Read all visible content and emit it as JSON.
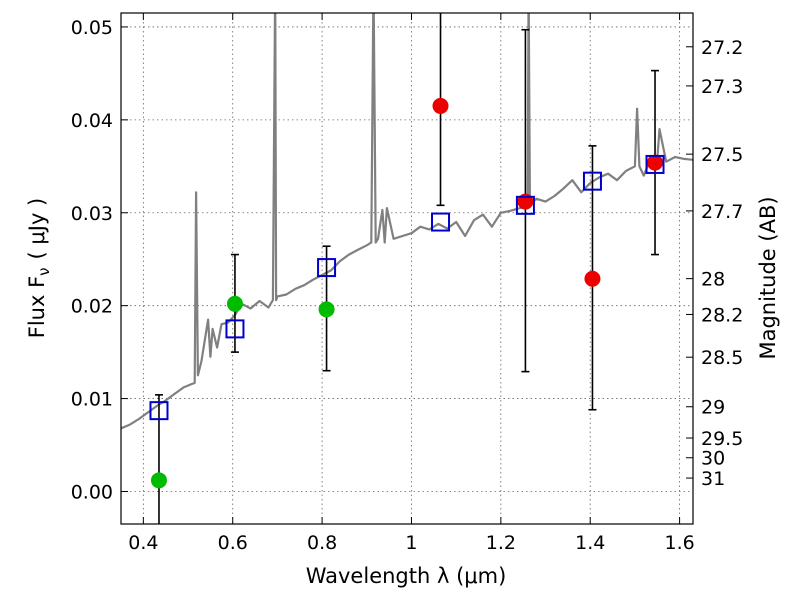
{
  "chart_data": {
    "type": "scatter",
    "xlabel": "Wavelength  λ (μm)",
    "ylabel_left": "Flux  F",
    "ylabel_left_sub": "ν",
    "ylabel_left_unit": "( μJy )",
    "ylabel_right": "Magnitude (AB)",
    "xlim": [
      0.35,
      1.63
    ],
    "ylim": [
      -0.0035,
      0.0515
    ],
    "x_ticks": [
      0.4,
      0.6,
      0.8,
      1.0,
      1.2,
      1.4,
      1.6
    ],
    "x_tick_labels": [
      "0.4",
      "0.6",
      "0.8",
      "1",
      "1.2",
      "1.4",
      "1.6"
    ],
    "y_ticks": [
      0.0,
      0.01,
      0.02,
      0.03,
      0.04,
      0.05
    ],
    "y_tick_labels": [
      "0.00",
      "0.01",
      "0.02",
      "0.03",
      "0.04",
      "0.05"
    ],
    "right_ticks": [
      {
        "mag": 27.2,
        "label": "27.2"
      },
      {
        "mag": 27.3,
        "label": "27.3"
      },
      {
        "mag": 27.5,
        "label": "27.5"
      },
      {
        "mag": 27.7,
        "label": "27.7"
      },
      {
        "mag": 28,
        "label": "28"
      },
      {
        "mag": 28.2,
        "label": "28.2"
      },
      {
        "mag": 28.5,
        "label": "28.5"
      },
      {
        "mag": 29,
        "label": "29"
      },
      {
        "mag": 29.5,
        "label": "29.5"
      },
      {
        "mag": 30,
        "label": "30"
      },
      {
        "mag": 31,
        "label": "31"
      }
    ],
    "grid": true,
    "colors": {
      "spectrum": "#808080",
      "green_points": "#00bb00",
      "red_points": "#ee0000",
      "model_boxes": "#0000cc",
      "errorbar": "#000000"
    },
    "series": [
      {
        "name": "spectrum",
        "kind": "line",
        "x": [
          0.35,
          0.37,
          0.39,
          0.41,
          0.43,
          0.45,
          0.47,
          0.49,
          0.505,
          0.515,
          0.518,
          0.522,
          0.53,
          0.545,
          0.55,
          0.555,
          0.565,
          0.575,
          0.59,
          0.605,
          0.62,
          0.64,
          0.66,
          0.68,
          0.69,
          0.695,
          0.697,
          0.7,
          0.72,
          0.74,
          0.76,
          0.78,
          0.8,
          0.82,
          0.84,
          0.86,
          0.88,
          0.9,
          0.91,
          0.915,
          0.92,
          0.925,
          0.935,
          0.94,
          0.945,
          0.96,
          0.98,
          1.0,
          1.02,
          1.04,
          1.06,
          1.08,
          1.1,
          1.12,
          1.14,
          1.16,
          1.18,
          1.2,
          1.22,
          1.25,
          1.26,
          1.262,
          1.265,
          1.28,
          1.3,
          1.32,
          1.34,
          1.36,
          1.38,
          1.4,
          1.42,
          1.44,
          1.46,
          1.48,
          1.5,
          1.505,
          1.51,
          1.52,
          1.53,
          1.545,
          1.55,
          1.555,
          1.57,
          1.59,
          1.61,
          1.63
        ],
        "y": [
          0.0068,
          0.0072,
          0.0078,
          0.0085,
          0.0092,
          0.0098,
          0.0105,
          0.0112,
          0.0115,
          0.0117,
          0.0322,
          0.0125,
          0.014,
          0.0185,
          0.0145,
          0.0175,
          0.0155,
          0.018,
          0.0182,
          0.019,
          0.0202,
          0.0197,
          0.0205,
          0.0198,
          0.0206,
          0.055,
          0.0206,
          0.021,
          0.0212,
          0.0218,
          0.0222,
          0.0228,
          0.0233,
          0.0238,
          0.0248,
          0.0255,
          0.026,
          0.0265,
          0.0268,
          0.055,
          0.0268,
          0.0272,
          0.0303,
          0.0268,
          0.0305,
          0.0272,
          0.0275,
          0.0278,
          0.0285,
          0.0282,
          0.0288,
          0.0283,
          0.029,
          0.0275,
          0.0292,
          0.0298,
          0.0285,
          0.03,
          0.0302,
          0.0306,
          0.031,
          0.055,
          0.031,
          0.0315,
          0.0312,
          0.0318,
          0.0326,
          0.0335,
          0.0322,
          0.0332,
          0.0338,
          0.0342,
          0.0335,
          0.0345,
          0.035,
          0.0412,
          0.035,
          0.034,
          0.0352,
          0.0348,
          0.0358,
          0.039,
          0.0355,
          0.036,
          0.0358,
          0.0357
        ]
      },
      {
        "name": "model-band-fluxes",
        "kind": "open-square",
        "x": [
          0.435,
          0.605,
          0.81,
          1.065,
          1.255,
          1.405,
          1.545
        ],
        "y": [
          0.0087,
          0.0175,
          0.0241,
          0.029,
          0.0308,
          0.0334,
          0.0352
        ]
      },
      {
        "name": "observed-optical",
        "kind": "green-point",
        "x": [
          0.435,
          0.605,
          0.81
        ],
        "y": [
          0.0012,
          0.0202,
          0.0196
        ],
        "err_lo": [
          0.0102,
          0.0052,
          0.0066
        ],
        "err_hi": [
          0.0092,
          0.0053,
          0.0068
        ]
      },
      {
        "name": "observed-nir",
        "kind": "red-point",
        "x": [
          1.065,
          1.255,
          1.405,
          1.545
        ],
        "y": [
          0.0415,
          0.0312,
          0.0229,
          0.0354
        ],
        "err_lo": [
          0.0107,
          0.0183,
          0.0141,
          0.0099
        ],
        "err_hi": [
          0.011,
          0.0185,
          0.0143,
          0.0099
        ]
      }
    ]
  }
}
